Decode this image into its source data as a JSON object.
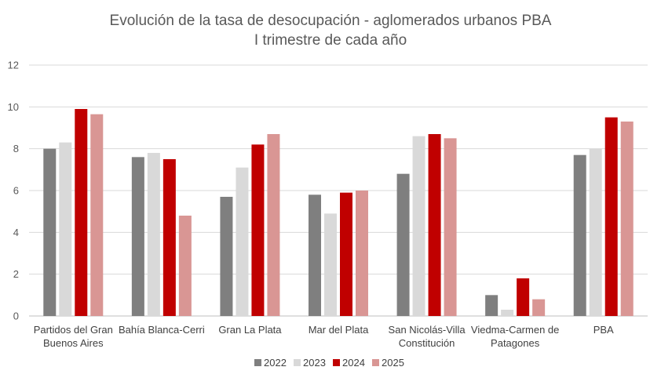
{
  "chart_data": {
    "type": "bar",
    "title": "Evolución de la tasa de desocupación - aglomerados urbanos PBA",
    "subtitle": "I trimestre de cada año",
    "xlabel": "",
    "ylabel": "",
    "ylim": [
      0,
      12
    ],
    "yticks": [
      0,
      2,
      4,
      6,
      8,
      10,
      12
    ],
    "grid": true,
    "legend_position": "bottom",
    "categories": [
      [
        "Partidos del Gran",
        "Buenos Aires"
      ],
      [
        "Bahía Blanca-Cerri"
      ],
      [
        "Gran La Plata"
      ],
      [
        "Mar del Plata"
      ],
      [
        "San Nicolás-Villa",
        "Constitución"
      ],
      [
        "Viedma-Carmen de",
        "Patagones"
      ],
      [
        "PBA"
      ]
    ],
    "series": [
      {
        "name": "2022",
        "color": "#7f7f7f",
        "values": [
          8.0,
          7.6,
          5.7,
          5.8,
          6.8,
          1.0,
          7.7
        ]
      },
      {
        "name": "2023",
        "color": "#d9d9d9",
        "values": [
          8.3,
          7.8,
          7.1,
          4.9,
          8.6,
          0.3,
          8.0
        ]
      },
      {
        "name": "2024",
        "color": "#c00000",
        "values": [
          9.9,
          7.5,
          8.2,
          5.9,
          8.7,
          1.8,
          9.5
        ]
      },
      {
        "name": "2025",
        "color": "#d99694",
        "values": [
          9.65,
          4.8,
          8.7,
          6.0,
          8.5,
          0.8,
          9.3
        ]
      }
    ]
  }
}
